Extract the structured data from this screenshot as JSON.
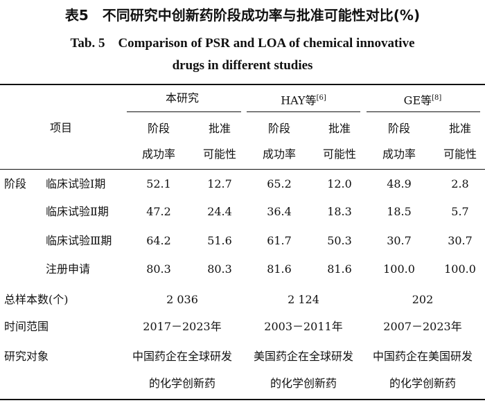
{
  "title": {
    "cn": "表5　不同研究中创新药阶段成功率与批准可能性对比(%)",
    "en_line1": "Tab. 5　Comparison of PSR and LOA of chemical innovative",
    "en_line2": "drugs in different studies"
  },
  "header": {
    "item": "项目",
    "groups": [
      {
        "label": "本研究",
        "ref": ""
      },
      {
        "label": "HAY等",
        "ref": "[6]"
      },
      {
        "label": "GE等",
        "ref": "[8]"
      }
    ],
    "sub": {
      "psr_line1": "阶段",
      "psr_line2": "成功率",
      "loa_line1": "批准",
      "loa_line2": "可能性"
    }
  },
  "stage_label": "阶段",
  "rows": [
    {
      "label": "临床试验Ⅰ期",
      "values": [
        "52.1",
        "12.7",
        "65.2",
        "12.0",
        "48.9",
        "2.8"
      ]
    },
    {
      "label": "临床试验Ⅱ期",
      "values": [
        "47.2",
        "24.4",
        "36.4",
        "18.3",
        "18.5",
        "5.7"
      ]
    },
    {
      "label": "临床试验Ⅲ期",
      "values": [
        "64.2",
        "51.6",
        "61.7",
        "50.3",
        "30.7",
        "30.7"
      ]
    },
    {
      "label": "注册申请",
      "values": [
        "80.3",
        "80.3",
        "81.6",
        "81.6",
        "100.0",
        "100.0"
      ]
    }
  ],
  "total": {
    "label": "总样本数(个)",
    "values": [
      "2 036",
      "2 124",
      "202"
    ]
  },
  "period": {
    "label": "时间范围",
    "values": [
      "2017－2023年",
      "2003－2011年",
      "2007－2023年"
    ]
  },
  "subject": {
    "label": "研究对象",
    "values": [
      {
        "line1": "中国药企在全球研发",
        "line2": "的化学创新药"
      },
      {
        "line1": "美国药企在全球研发",
        "line2": "的化学创新药"
      },
      {
        "line1": "中国药企在美国研发",
        "line2": "的化学创新药"
      }
    ]
  }
}
